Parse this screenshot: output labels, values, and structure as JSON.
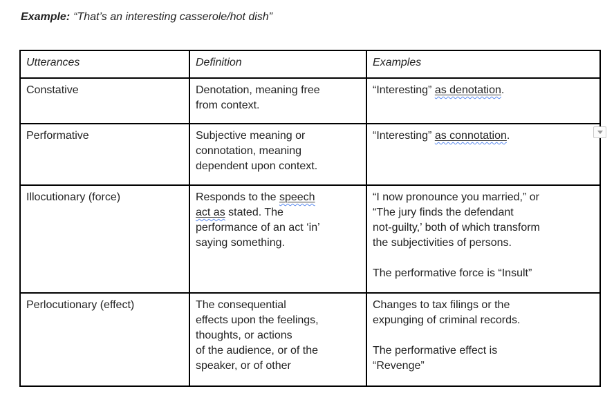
{
  "caption": {
    "label": "Example:",
    "quote": "“That’s an interesting casserole/hot dish”"
  },
  "table": {
    "headers": [
      {
        "label": "Utterances"
      },
      {
        "label": "Definition"
      },
      {
        "label": "Examples"
      }
    ],
    "rows": [
      {
        "term": "Constative",
        "definition": [
          {
            "text": "Denotation, meaning free\nfrom context."
          }
        ],
        "examples": [
          {
            "text": "“Interesting” "
          },
          {
            "text": "as denotation",
            "flag": true
          },
          {
            "text": "."
          }
        ]
      },
      {
        "term": "Performative",
        "definition": [
          {
            "text": "Subjective meaning or\nconnotation, meaning\ndependent upon context."
          }
        ],
        "examples": [
          {
            "text": "“Interesting” "
          },
          {
            "text": "as connotation",
            "flag": true
          },
          {
            "text": "."
          }
        ]
      },
      {
        "term": "Illocutionary (force)",
        "definition": [
          {
            "text": "Responds to the "
          },
          {
            "text": "speech\nact as",
            "flag": true
          },
          {
            "text": " stated. The\nperformance of an act ‘in’\nsaying something."
          }
        ],
        "examples": [
          {
            "text": "“I now pronounce you married,” or\n“The jury finds the defendant\nnot-guilty,’ both of which transform\nthe subjectivities of persons.\n\nThe performative force is “Insult”"
          }
        ]
      },
      {
        "term": "Perlocutionary (effect)",
        "definition": [
          {
            "text": "The consequential\neffects upon the feelings,\nthoughts, or actions\nof the audience, or of the\nspeaker, or of other"
          }
        ],
        "examples": [
          {
            "text": "Changes to tax filings or the\nexpunging of criminal records.\n\nThe performative effect is\n“Revenge”"
          }
        ]
      }
    ]
  },
  "widget": {
    "icon": "chevron-down"
  },
  "colors": {
    "text": "#222222",
    "table_border": "#000000",
    "grammar_wave": "#5a8bf0",
    "flag_underline": "#3a3a3a",
    "widget_border": "#c9c9c9",
    "widget_bg": "#fbfbfb",
    "widget_glyph": "#9a9a9a"
  }
}
